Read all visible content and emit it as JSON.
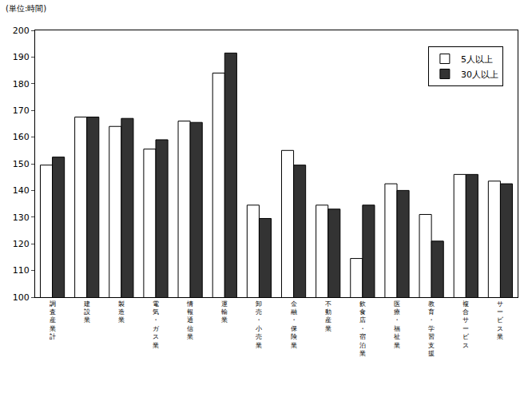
{
  "chart_data": {
    "type": "bar",
    "y_label": "(単位:時間)",
    "categories": [
      "調査産業計",
      "建設業",
      "製造業",
      "電気・ガス業",
      "情報通信業",
      "運輸業",
      "卸売・小売業",
      "金融・保険業",
      "不動産業",
      "飲食店・宿泊業",
      "医療・福祉業",
      "教育・学習支援",
      "複合サービス",
      "サービス業"
    ],
    "series": [
      {
        "name": "5人以上",
        "color": "#ffffff",
        "values": [
          149.5,
          167.5,
          164,
          155.5,
          166,
          184,
          134.5,
          155,
          134.5,
          114.5,
          142.5,
          131,
          146,
          143.5
        ]
      },
      {
        "name": "30人以上",
        "color": "#333333",
        "values": [
          152.5,
          167.5,
          167,
          159,
          165.5,
          191.5,
          129.5,
          149.5,
          133,
          134.5,
          140,
          121,
          146,
          142.5
        ]
      }
    ],
    "ylim": [
      100,
      200
    ],
    "yticks": [
      100,
      110,
      120,
      130,
      140,
      150,
      160,
      170,
      180,
      190,
      200
    ],
    "grid": false,
    "legend": "top right"
  }
}
